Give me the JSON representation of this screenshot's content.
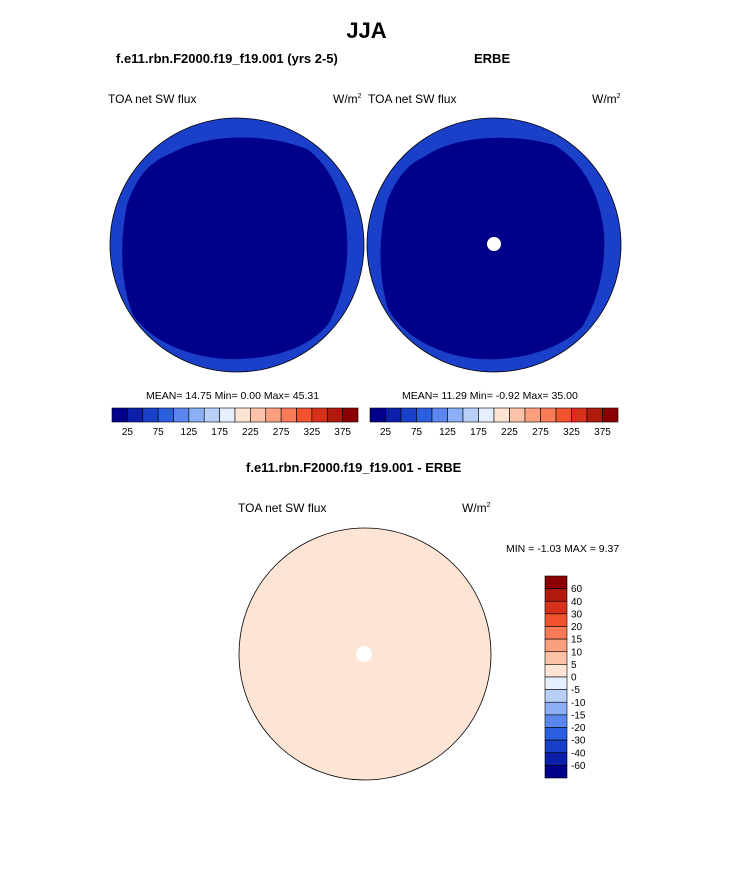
{
  "page": {
    "season_title": "JJA",
    "left_panel_title": "f.e11.rbn.F2000.f19_f19.001 (yrs 2-5)",
    "right_panel_title": "ERBE",
    "diff_title": "f.e11.rbn.F2000.f19_f19.001 - ERBE"
  },
  "panels": {
    "left": {
      "variable": "TOA net SW flux",
      "units_base": "W/m",
      "units_exp": "2",
      "stats": "MEAN=  14.75  Min=   0.00  Max=  45.31"
    },
    "right": {
      "variable": "TOA net SW flux",
      "units_base": "W/m",
      "units_exp": "2",
      "stats": "MEAN=  11.29  Min=  -0.92  Max=  35.00"
    },
    "diff": {
      "variable": "TOA net SW flux",
      "units_base": "W/m",
      "units_exp": "2",
      "stats": "MIN =  -1.03 MAX =   9.37"
    }
  },
  "colorbar_horizontal": {
    "colors": [
      "#00008b",
      "#0b1faa",
      "#1a3fc8",
      "#2b5fe0",
      "#5a86ee",
      "#8aaff4",
      "#b8cff8",
      "#e6efff",
      "#fde4d4",
      "#fcc3a8",
      "#fba07f",
      "#f97a57",
      "#f0532e",
      "#d6311a",
      "#b01a0c",
      "#8b0000"
    ],
    "labels": [
      "25",
      "75",
      "125",
      "175",
      "225",
      "275",
      "325",
      "375"
    ]
  },
  "colorbar_vertical": {
    "colors": [
      "#8b0000",
      "#b01a0c",
      "#d6311a",
      "#f0532e",
      "#f97a57",
      "#fba07f",
      "#fcc3a8",
      "#fde4d4",
      "#e6efff",
      "#b8cff8",
      "#8aaff4",
      "#5a86ee",
      "#2b5fe0",
      "#1a3fc8",
      "#0b1faa",
      "#00008b"
    ],
    "labels": [
      "60",
      "40",
      "30",
      "20",
      "15",
      "10",
      "5",
      "0",
      "-5",
      "-10",
      "-15",
      "-20",
      "-30",
      "-40",
      "-60"
    ]
  },
  "map_colors": {
    "ring": "#1a3fc8",
    "interior": "#00008b",
    "diff_base": "#fde4d4",
    "diff_positive": "#fcc3a8",
    "diff_negative": "#dfe9fb",
    "pole_hole": "#ffffff"
  }
}
